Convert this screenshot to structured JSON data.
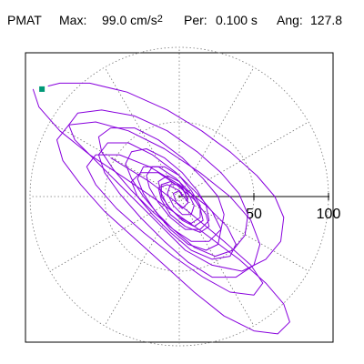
{
  "header": {
    "station": "PMAT",
    "max_label": "Max:",
    "max_value": "99.0 cm/s",
    "max_exponent": "2",
    "per_label": "Per:",
    "per_value": "0.100 s",
    "ang_label": "Ang:",
    "ang_value": "127.8"
  },
  "chart_data": {
    "type": "polar-orbit",
    "title": "",
    "radial_ticks": [
      {
        "value": 50,
        "label": "50"
      },
      {
        "value": 100,
        "label": "100"
      }
    ],
    "r_max": 100,
    "grid": true,
    "grid_angle_step_deg": 30,
    "series": [
      {
        "color": "#8800dd",
        "points": [
          [
            -88,
            74
          ],
          [
            -80,
            76
          ],
          [
            -60,
            76
          ],
          [
            -35,
            70
          ],
          [
            -8,
            58
          ],
          [
            15,
            44
          ],
          [
            34,
            30
          ],
          [
            52,
            14
          ],
          [
            64,
            0
          ],
          [
            70,
            -14
          ],
          [
            68,
            -30
          ],
          [
            58,
            -42
          ],
          [
            42,
            -50
          ],
          [
            22,
            -46
          ],
          [
            4,
            -36
          ],
          [
            -12,
            -20
          ],
          [
            -28,
            -4
          ],
          [
            -44,
            12
          ],
          [
            -58,
            26
          ],
          [
            -70,
            38
          ],
          [
            -74,
            48
          ],
          [
            -68,
            56
          ],
          [
            -52,
            58
          ],
          [
            -30,
            54
          ],
          [
            -8,
            44
          ],
          [
            12,
            30
          ],
          [
            28,
            16
          ],
          [
            40,
            2
          ],
          [
            46,
            -12
          ],
          [
            44,
            -26
          ],
          [
            36,
            -36
          ],
          [
            24,
            -40
          ],
          [
            10,
            -34
          ],
          [
            -4,
            -22
          ],
          [
            -18,
            -10
          ],
          [
            -32,
            4
          ],
          [
            -44,
            18
          ],
          [
            -52,
            30
          ],
          [
            -54,
            40
          ],
          [
            -46,
            46
          ],
          [
            -30,
            46
          ],
          [
            -14,
            38
          ],
          [
            2,
            26
          ],
          [
            16,
            12
          ],
          [
            26,
            0
          ],
          [
            30,
            -12
          ],
          [
            28,
            -22
          ],
          [
            20,
            -30
          ],
          [
            8,
            -30
          ],
          [
            -4,
            -22
          ],
          [
            -14,
            -12
          ],
          [
            -24,
            0
          ],
          [
            -32,
            12
          ],
          [
            -36,
            22
          ],
          [
            -32,
            30
          ],
          [
            -22,
            32
          ],
          [
            -10,
            26
          ],
          [
            2,
            16
          ],
          [
            12,
            4
          ],
          [
            18,
            -6
          ],
          [
            20,
            -16
          ],
          [
            14,
            -22
          ],
          [
            4,
            -22
          ],
          [
            -6,
            -14
          ],
          [
            -14,
            -4
          ],
          [
            -20,
            6
          ],
          [
            -22,
            14
          ],
          [
            -18,
            20
          ],
          [
            -10,
            20
          ],
          [
            0,
            14
          ],
          [
            8,
            4
          ],
          [
            14,
            -6
          ],
          [
            14,
            -14
          ],
          [
            8,
            -18
          ],
          [
            0,
            -14
          ],
          [
            -8,
            -6
          ],
          [
            -12,
            2
          ],
          [
            -14,
            10
          ],
          [
            -8,
            14
          ],
          [
            0,
            10
          ],
          [
            6,
            2
          ],
          [
            10,
            -6
          ],
          [
            8,
            -12
          ],
          [
            2,
            -12
          ],
          [
            -4,
            -6
          ],
          [
            -8,
            2
          ],
          [
            -6,
            8
          ],
          [
            0,
            8
          ],
          [
            4,
            2
          ],
          [
            6,
            -4
          ],
          [
            2,
            -8
          ],
          [
            -2,
            -4
          ],
          [
            -4,
            2
          ],
          [
            0,
            4
          ],
          [
            2,
            0
          ]
        ]
      },
      {
        "color": "#8800dd",
        "points": [
          [
            -98,
            72
          ],
          [
            -94,
            60
          ],
          [
            -80,
            44
          ],
          [
            -60,
            28
          ],
          [
            -36,
            12
          ],
          [
            -10,
            -6
          ],
          [
            16,
            -24
          ],
          [
            40,
            -42
          ],
          [
            58,
            -58
          ],
          [
            70,
            -72
          ],
          [
            74,
            -84
          ],
          [
            66,
            -92
          ],
          [
            50,
            -90
          ],
          [
            30,
            -80
          ],
          [
            10,
            -64
          ],
          [
            -10,
            -46
          ],
          [
            -30,
            -28
          ],
          [
            -50,
            -10
          ],
          [
            -66,
            8
          ],
          [
            -78,
            24
          ],
          [
            -82,
            38
          ],
          [
            -74,
            48
          ],
          [
            -56,
            50
          ],
          [
            -34,
            44
          ],
          [
            -10,
            32
          ],
          [
            14,
            16
          ],
          [
            34,
            0
          ],
          [
            48,
            -16
          ],
          [
            54,
            -32
          ],
          [
            50,
            -46
          ],
          [
            38,
            -54
          ],
          [
            22,
            -54
          ],
          [
            6,
            -44
          ],
          [
            -10,
            -30
          ],
          [
            -26,
            -14
          ],
          [
            -40,
            2
          ],
          [
            -50,
            16
          ],
          [
            -54,
            28
          ],
          [
            -48,
            36
          ],
          [
            -34,
            36
          ],
          [
            -18,
            28
          ],
          [
            -2,
            16
          ],
          [
            12,
            2
          ],
          [
            22,
            -10
          ],
          [
            28,
            -22
          ],
          [
            26,
            -32
          ],
          [
            18,
            -36
          ],
          [
            6,
            -32
          ],
          [
            -6,
            -22
          ],
          [
            -16,
            -10
          ],
          [
            -24,
            2
          ],
          [
            -28,
            12
          ],
          [
            -24,
            20
          ],
          [
            -14,
            20
          ],
          [
            -2,
            12
          ],
          [
            8,
            2
          ],
          [
            14,
            -8
          ],
          [
            16,
            -16
          ],
          [
            10,
            -20
          ],
          [
            2,
            -16
          ],
          [
            -6,
            -8
          ],
          [
            -12,
            0
          ],
          [
            -12,
            8
          ],
          [
            -6,
            10
          ],
          [
            2,
            6
          ],
          [
            6,
            -2
          ]
        ]
      },
      {
        "color": "#8800dd",
        "points": [
          [
            -46,
            26
          ],
          [
            -20,
            10
          ],
          [
            6,
            -10
          ],
          [
            30,
            -30
          ],
          [
            48,
            -46
          ],
          [
            56,
            -58
          ],
          [
            50,
            -66
          ],
          [
            34,
            -64
          ],
          [
            16,
            -54
          ],
          [
            -4,
            -40
          ],
          [
            -24,
            -24
          ],
          [
            -42,
            -8
          ],
          [
            -56,
            8
          ],
          [
            -62,
            20
          ],
          [
            -56,
            28
          ],
          [
            -40,
            28
          ],
          [
            -20,
            20
          ],
          [
            0,
            8
          ],
          [
            18,
            -6
          ],
          [
            32,
            -20
          ],
          [
            38,
            -32
          ],
          [
            34,
            -40
          ],
          [
            22,
            -42
          ],
          [
            8,
            -36
          ],
          [
            -6,
            -24
          ],
          [
            -18,
            -12
          ],
          [
            -28,
            0
          ],
          [
            -32,
            10
          ],
          [
            -26,
            16
          ],
          [
            -14,
            16
          ],
          [
            -2,
            8
          ],
          [
            10,
            -2
          ],
          [
            18,
            -12
          ],
          [
            20,
            -20
          ],
          [
            14,
            -24
          ],
          [
            4,
            -20
          ],
          [
            -6,
            -12
          ],
          [
            -12,
            -2
          ],
          [
            -14,
            6
          ],
          [
            -8,
            8
          ],
          [
            0,
            4
          ],
          [
            6,
            -4
          ]
        ]
      }
    ],
    "marker": {
      "x": -92,
      "y": 72,
      "color": "#009977"
    }
  }
}
